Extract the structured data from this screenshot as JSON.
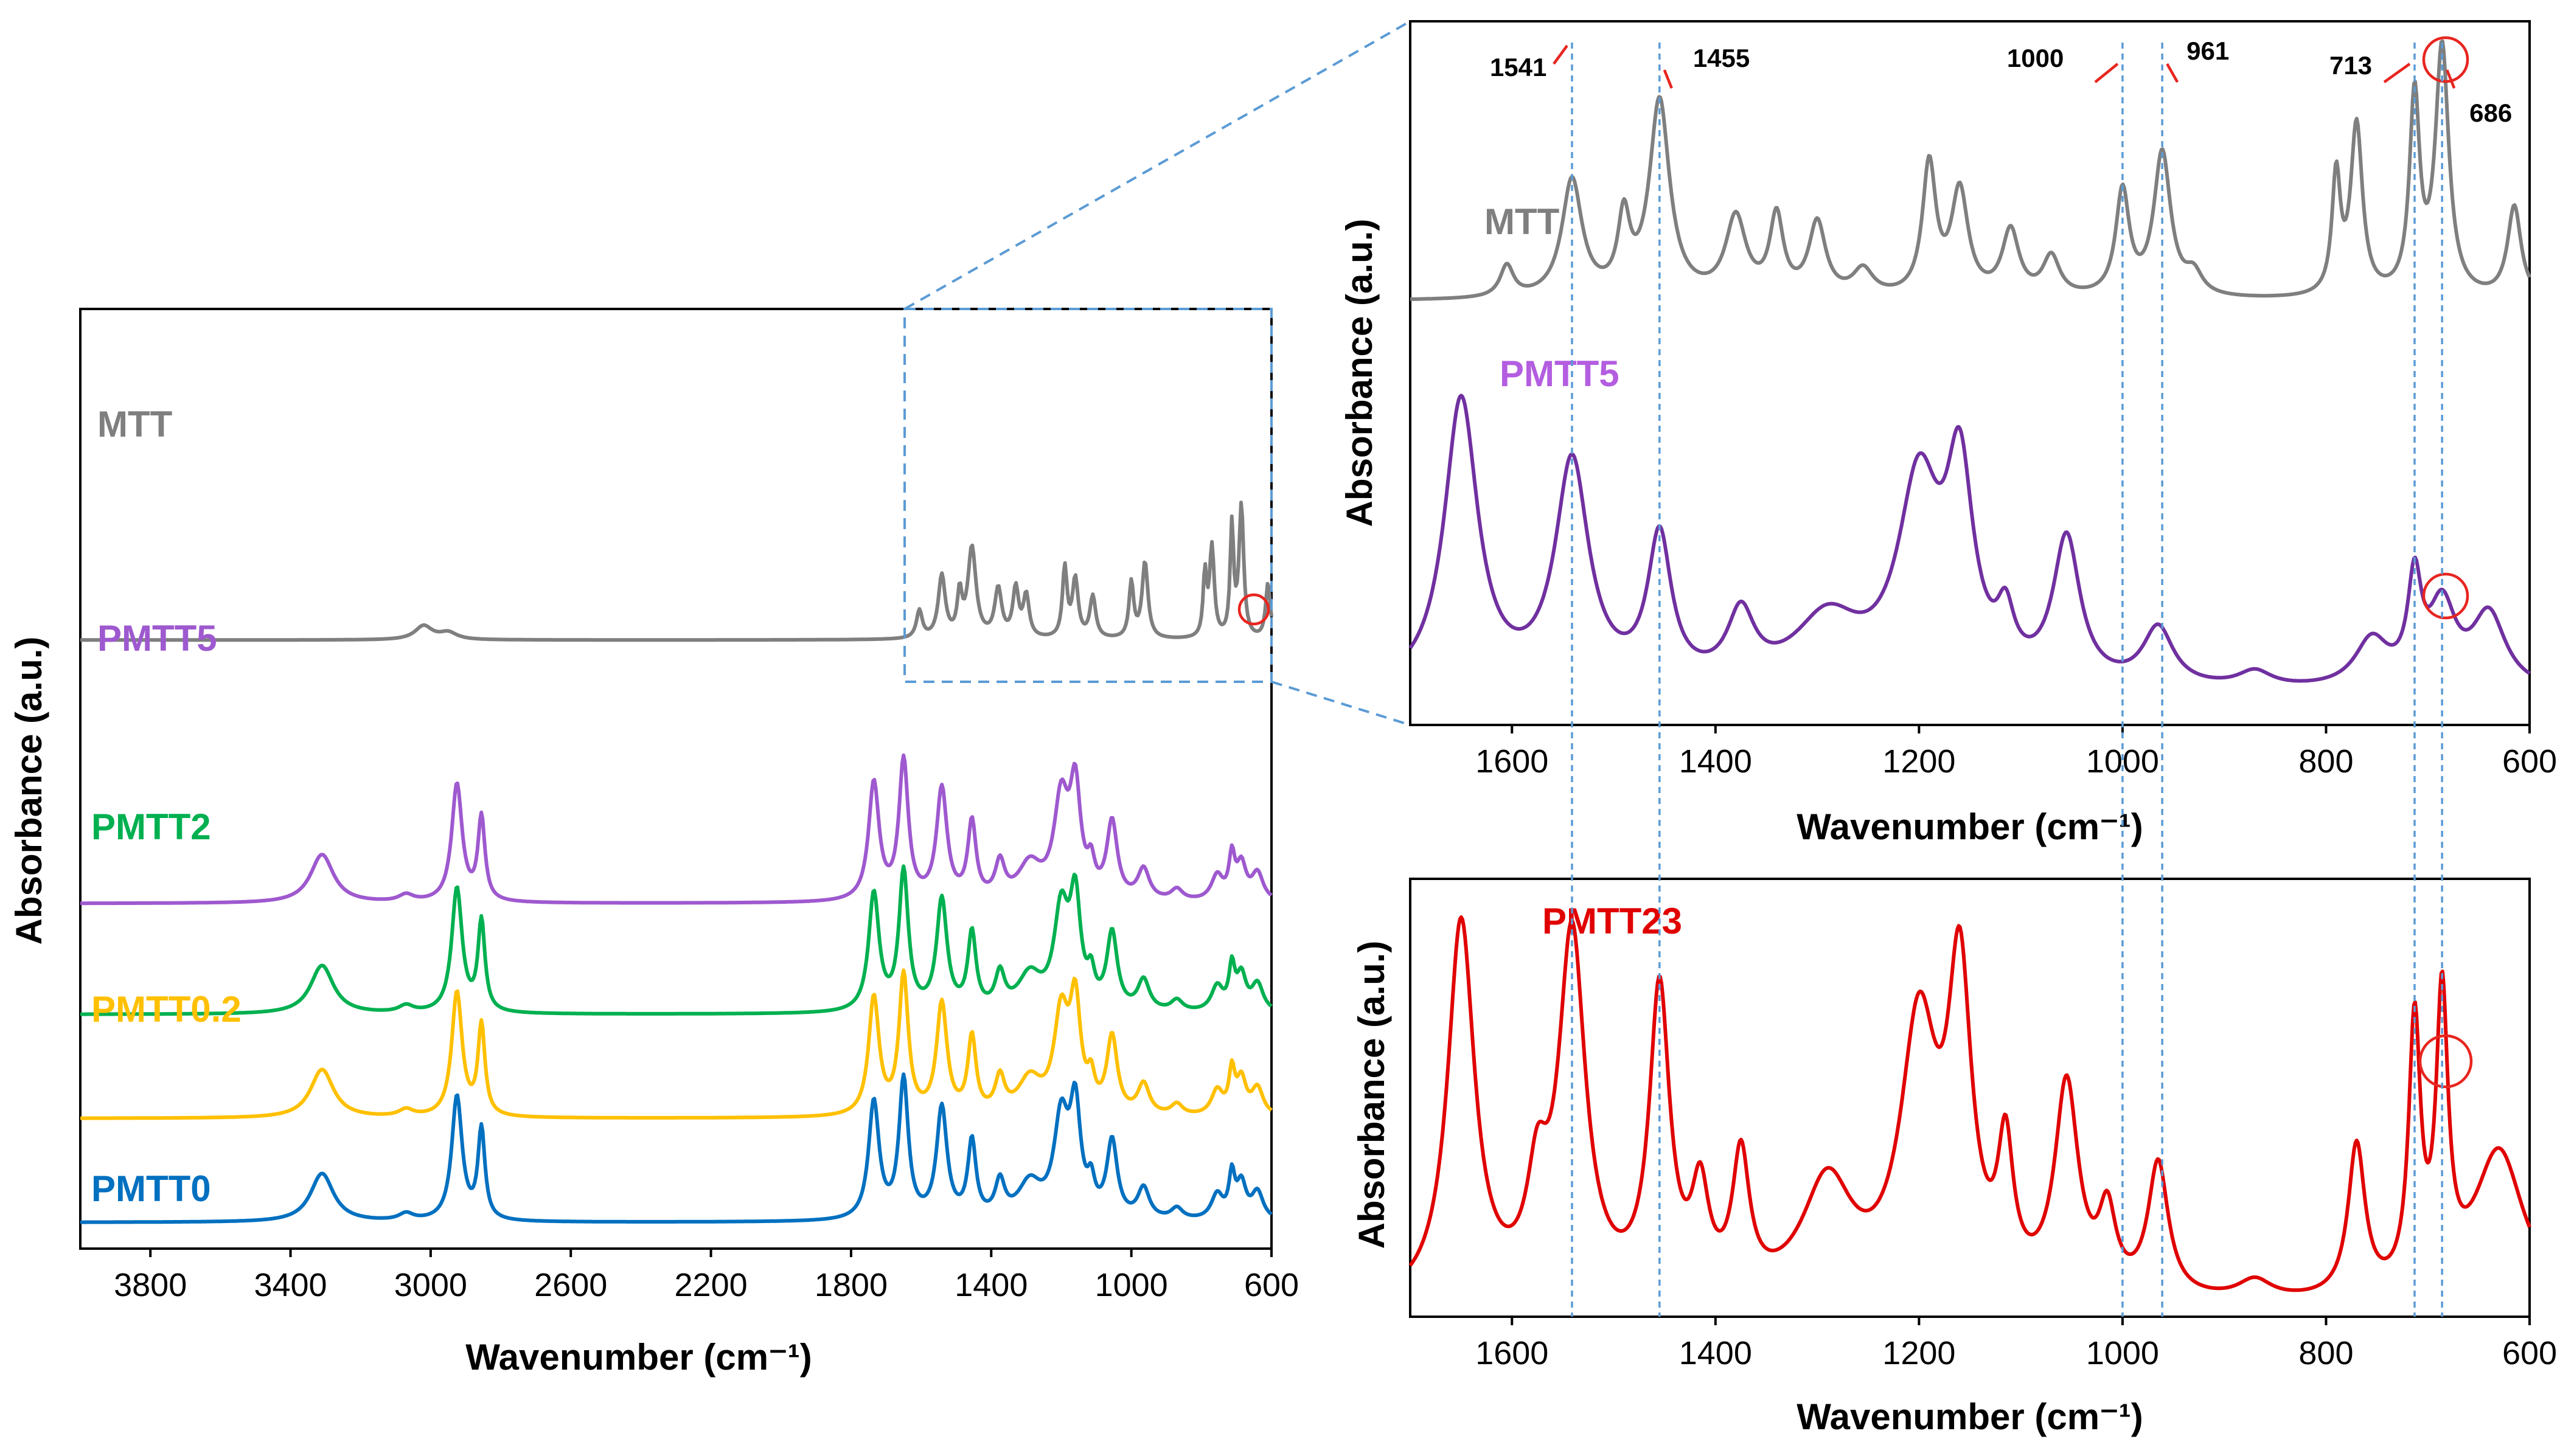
{
  "chart_data": [
    {
      "type": "line",
      "title": "",
      "xlabel": "Wavenumber (cm⁻¹)",
      "ylabel": "Absorbance (a.u.)",
      "xlim": [
        4000,
        600
      ],
      "xticks": [
        3800,
        3400,
        3000,
        2600,
        2200,
        1800,
        1400,
        1000,
        600
      ],
      "xtick_labels": [
        "3800",
        "3400",
        "3000",
        "2600",
        "2200",
        "1800",
        "1400",
        "1000",
        "600"
      ],
      "zoom_region": [
        1700,
        600
      ],
      "series": [
        {
          "name": "MTT",
          "color": "#7f7f7f",
          "offset": 4.2,
          "peaks": [
            [
              3020,
              0.1,
              30
            ],
            [
              2950,
              0.05,
              30
            ],
            [
              1605,
              0.2,
              10
            ],
            [
              1541,
              0.45,
              12
            ],
            [
              1490,
              0.3,
              8
            ],
            [
              1455,
              0.65,
              14
            ],
            [
              1380,
              0.35,
              12
            ],
            [
              1330,
              0.35,
              10
            ],
            [
              1300,
              0.3,
              10
            ],
            [
              1190,
              0.5,
              8
            ],
            [
              1160,
              0.42,
              10
            ],
            [
              1110,
              0.3,
              10
            ],
            [
              1000,
              0.4,
              8
            ],
            [
              961,
              0.55,
              10
            ],
            [
              790,
              0.45,
              6
            ],
            [
              770,
              0.65,
              8
            ],
            [
              713,
              0.8,
              6
            ],
            [
              686,
              0.95,
              8
            ],
            [
              610,
              0.4,
              8
            ]
          ]
        },
        {
          "name": "PMTT5",
          "color": "#9e59cf",
          "offset": 2.3,
          "peaks": [
            [
              3310,
              0.35,
              40
            ],
            [
              3070,
              0.05,
              25
            ],
            [
              2925,
              0.85,
              18
            ],
            [
              2855,
              0.6,
              12
            ],
            [
              1735,
              0.85,
              18
            ],
            [
              1650,
              1.0,
              16
            ],
            [
              1541,
              0.8,
              18
            ],
            [
              1455,
              0.55,
              14
            ],
            [
              1375,
              0.25,
              16
            ],
            [
              1290,
              0.25,
              40
            ],
            [
              1200,
              0.7,
              25
            ],
            [
              1160,
              0.75,
              18
            ],
            [
              1115,
              0.2,
              12
            ],
            [
              1055,
              0.55,
              18
            ],
            [
              965,
              0.22,
              20
            ],
            [
              870,
              0.08,
              20
            ],
            [
              755,
              0.18,
              20
            ],
            [
              713,
              0.3,
              10
            ],
            [
              686,
              0.25,
              16
            ],
            [
              640,
              0.2,
              20
            ]
          ]
        },
        {
          "name": "PMTT2",
          "color": "#00b050",
          "offset": 1.5,
          "peaks": [
            [
              3310,
              0.35,
              40
            ],
            [
              3070,
              0.05,
              25
            ],
            [
              2925,
              0.9,
              18
            ],
            [
              2855,
              0.65,
              12
            ],
            [
              1735,
              0.85,
              18
            ],
            [
              1650,
              1.0,
              16
            ],
            [
              1541,
              0.8,
              18
            ],
            [
              1455,
              0.55,
              14
            ],
            [
              1375,
              0.25,
              16
            ],
            [
              1290,
              0.25,
              40
            ],
            [
              1200,
              0.7,
              25
            ],
            [
              1160,
              0.75,
              18
            ],
            [
              1115,
              0.2,
              12
            ],
            [
              1055,
              0.55,
              18
            ],
            [
              965,
              0.22,
              20
            ],
            [
              870,
              0.08,
              20
            ],
            [
              755,
              0.18,
              20
            ],
            [
              713,
              0.3,
              10
            ],
            [
              686,
              0.25,
              16
            ],
            [
              640,
              0.2,
              20
            ]
          ]
        },
        {
          "name": "PMTT0.2",
          "color": "#ffc000",
          "offset": 0.75,
          "peaks": [
            [
              3310,
              0.35,
              40
            ],
            [
              3070,
              0.05,
              25
            ],
            [
              2925,
              0.9,
              18
            ],
            [
              2855,
              0.65,
              12
            ],
            [
              1735,
              0.85,
              18
            ],
            [
              1650,
              1.0,
              16
            ],
            [
              1541,
              0.8,
              18
            ],
            [
              1455,
              0.55,
              14
            ],
            [
              1375,
              0.25,
              16
            ],
            [
              1290,
              0.25,
              40
            ],
            [
              1200,
              0.7,
              25
            ],
            [
              1160,
              0.75,
              18
            ],
            [
              1115,
              0.2,
              12
            ],
            [
              1055,
              0.55,
              18
            ],
            [
              965,
              0.22,
              20
            ],
            [
              870,
              0.08,
              20
            ],
            [
              755,
              0.18,
              20
            ],
            [
              713,
              0.3,
              10
            ],
            [
              686,
              0.25,
              16
            ],
            [
              640,
              0.2,
              20
            ]
          ]
        },
        {
          "name": "PMTT0",
          "color": "#0070c0",
          "offset": 0.0,
          "peaks": [
            [
              3310,
              0.35,
              40
            ],
            [
              3070,
              0.05,
              25
            ],
            [
              2925,
              0.9,
              18
            ],
            [
              2855,
              0.65,
              12
            ],
            [
              1735,
              0.85,
              18
            ],
            [
              1650,
              1.0,
              16
            ],
            [
              1541,
              0.8,
              18
            ],
            [
              1455,
              0.55,
              14
            ],
            [
              1375,
              0.25,
              16
            ],
            [
              1290,
              0.25,
              40
            ],
            [
              1200,
              0.7,
              25
            ],
            [
              1160,
              0.75,
              18
            ],
            [
              1115,
              0.2,
              12
            ],
            [
              1055,
              0.55,
              18
            ],
            [
              965,
              0.22,
              20
            ],
            [
              870,
              0.08,
              20
            ],
            [
              755,
              0.18,
              20
            ],
            [
              713,
              0.3,
              10
            ],
            [
              686,
              0.25,
              16
            ],
            [
              640,
              0.2,
              20
            ]
          ]
        }
      ]
    },
    {
      "type": "line",
      "title": "",
      "xlabel": "Wavenumber (cm⁻¹)",
      "ylabel": "Absorbance (a.u.)",
      "xlim": [
        1700,
        600
      ],
      "xticks": [
        1600,
        1400,
        1200,
        1000,
        800,
        600
      ],
      "xtick_labels": [
        "1600",
        "1400",
        "1200",
        "1000",
        "800",
        "600"
      ],
      "peak_markers": [
        1541,
        1455,
        1000,
        961,
        713,
        686
      ],
      "peak_labels": [
        "1541",
        "1455",
        "1000",
        "961",
        "713",
        "686"
      ],
      "series": [
        {
          "name": "MTT",
          "color": "#7f7f7f",
          "offset": 1.5,
          "peaks": [
            [
              1605,
              0.12,
              8
            ],
            [
              1541,
              0.45,
              12
            ],
            [
              1490,
              0.28,
              7
            ],
            [
              1455,
              0.75,
              12
            ],
            [
              1380,
              0.3,
              12
            ],
            [
              1340,
              0.3,
              8
            ],
            [
              1300,
              0.28,
              10
            ],
            [
              1255,
              0.1,
              12
            ],
            [
              1190,
              0.5,
              8
            ],
            [
              1160,
              0.4,
              10
            ],
            [
              1110,
              0.25,
              10
            ],
            [
              1070,
              0.15,
              10
            ],
            [
              1000,
              0.4,
              8
            ],
            [
              961,
              0.55,
              10
            ],
            [
              930,
              0.08,
              10
            ],
            [
              790,
              0.45,
              5
            ],
            [
              770,
              0.65,
              7
            ],
            [
              713,
              0.75,
              6
            ],
            [
              686,
              0.95,
              8
            ],
            [
              615,
              0.35,
              8
            ]
          ]
        },
        {
          "name": "PMTT5",
          "color": "#7030a0",
          "label_color": "#b35de0",
          "offset": 0.0,
          "peaks": [
            [
              1650,
              1.1,
              20
            ],
            [
              1541,
              0.85,
              20
            ],
            [
              1455,
              0.55,
              14
            ],
            [
              1375,
              0.25,
              16
            ],
            [
              1290,
              0.25,
              40
            ],
            [
              1200,
              0.75,
              25
            ],
            [
              1160,
              0.75,
              16
            ],
            [
              1115,
              0.2,
              10
            ],
            [
              1055,
              0.55,
              16
            ],
            [
              965,
              0.22,
              18
            ],
            [
              870,
              0.06,
              20
            ],
            [
              755,
              0.18,
              20
            ],
            [
              713,
              0.38,
              8
            ],
            [
              686,
              0.3,
              16
            ],
            [
              640,
              0.28,
              20
            ]
          ]
        }
      ]
    },
    {
      "type": "line",
      "title": "",
      "xlabel": "Wavenumber (cm⁻¹)",
      "ylabel": "Absorbance (a.u.)",
      "xlim": [
        1700,
        600
      ],
      "xticks": [
        1600,
        1400,
        1200,
        1000,
        800,
        600
      ],
      "xtick_labels": [
        "1600",
        "1400",
        "1200",
        "1000",
        "800",
        "600"
      ],
      "series": [
        {
          "name": "PMTT23",
          "color": "#e00000",
          "offset": 0.0,
          "peaks": [
            [
              1650,
              1.0,
              16
            ],
            [
              1575,
              0.25,
              12
            ],
            [
              1541,
              0.95,
              16
            ],
            [
              1455,
              0.8,
              12
            ],
            [
              1415,
              0.25,
              10
            ],
            [
              1375,
              0.35,
              10
            ],
            [
              1290,
              0.3,
              30
            ],
            [
              1200,
              0.7,
              22
            ],
            [
              1160,
              0.8,
              14
            ],
            [
              1115,
              0.35,
              9
            ],
            [
              1055,
              0.55,
              14
            ],
            [
              1015,
              0.2,
              10
            ],
            [
              965,
              0.35,
              12
            ],
            [
              870,
              0.05,
              20
            ],
            [
              770,
              0.4,
              10
            ],
            [
              713,
              0.7,
              7
            ],
            [
              686,
              0.75,
              7
            ],
            [
              630,
              0.4,
              30
            ]
          ]
        }
      ]
    }
  ]
}
